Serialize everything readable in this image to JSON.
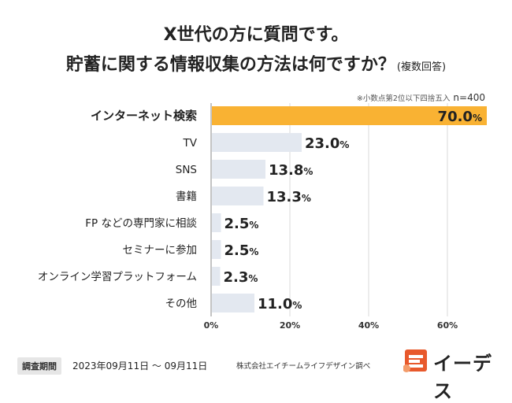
{
  "header": {
    "title_line1": "X世代の方に質問です。",
    "title_line2": "貯蓄に関する情報収集の方法は何ですか？",
    "title_note": "(複数回答)"
  },
  "chart_note": {
    "rounding": "※小数点第2位以下四捨五入",
    "sample": "n=400"
  },
  "chart_data": {
    "type": "bar",
    "orientation": "horizontal",
    "categories": [
      "インターネット検索",
      "TV",
      "SNS",
      "書籍",
      "FP などの専門家に相談",
      "セミナーに参加",
      "オンライン学習プラットフォーム",
      "その他"
    ],
    "values": [
      70.0,
      23.0,
      13.8,
      13.3,
      2.5,
      2.5,
      2.3,
      11.0
    ],
    "value_labels": [
      "70.0",
      "23.0",
      "13.8",
      "13.3",
      "2.5",
      "2.5",
      "2.3",
      "11.0"
    ],
    "value_unit": "%",
    "xlim": [
      0,
      70
    ],
    "xticks": [
      "0%",
      "20%",
      "40%",
      "60%"
    ],
    "xtick_values": [
      0,
      20,
      40,
      60
    ],
    "grid": true,
    "highlight_index": 0,
    "colors": {
      "highlight": "#F9B233",
      "bar": "#E3E8F0",
      "grid": "#DADADA",
      "axis": "#888888"
    }
  },
  "footer": {
    "period_label": "調査期間",
    "period": "2023年09月11日 〜 09月11日",
    "company": "株式会社エイチームライフデザイン調べ"
  },
  "logo": {
    "text": "イーデス",
    "icon": "owl-icon",
    "color": "#E8592C"
  }
}
